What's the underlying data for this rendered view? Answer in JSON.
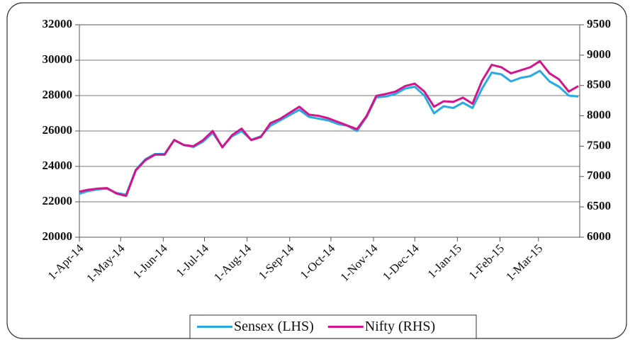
{
  "chart_data": {
    "type": "line",
    "x": [
      "2014-04-01",
      "2014-04-07",
      "2014-04-14",
      "2014-04-21",
      "2014-04-28",
      "2014-05-05",
      "2014-05-12",
      "2014-05-19",
      "2014-05-26",
      "2014-06-02",
      "2014-06-09",
      "2014-06-16",
      "2014-06-23",
      "2014-06-30",
      "2014-07-07",
      "2014-07-14",
      "2014-07-21",
      "2014-07-28",
      "2014-08-04",
      "2014-08-11",
      "2014-08-18",
      "2014-08-25",
      "2014-09-01",
      "2014-09-08",
      "2014-09-15",
      "2014-09-22",
      "2014-09-29",
      "2014-10-06",
      "2014-10-13",
      "2014-10-20",
      "2014-10-27",
      "2014-11-03",
      "2014-11-10",
      "2014-11-17",
      "2014-11-24",
      "2014-12-01",
      "2014-12-08",
      "2014-12-15",
      "2014-12-22",
      "2014-12-29",
      "2015-01-05",
      "2015-01-12",
      "2015-01-19",
      "2015-01-26",
      "2015-02-02",
      "2015-02-09",
      "2015-02-16",
      "2015-02-23",
      "2015-03-02",
      "2015-03-09",
      "2015-03-16",
      "2015-03-23",
      "2015-03-30"
    ],
    "series": [
      {
        "name": "Sensex (LHS)",
        "color": "#29abe2",
        "values": [
          22450,
          22600,
          22700,
          22750,
          22500,
          22400,
          23800,
          24400,
          24700,
          24700,
          25500,
          25200,
          25100,
          25400,
          25900,
          25100,
          25700,
          26000,
          25500,
          25700,
          26300,
          26600,
          26900,
          27200,
          26800,
          26700,
          26600,
          26400,
          26300,
          26000,
          26800,
          27900,
          27950,
          28100,
          28400,
          28500,
          28000,
          27000,
          27400,
          27300,
          27600,
          27300,
          28400,
          29300,
          29200,
          28800,
          29000,
          29100,
          29400,
          28800,
          28500,
          28000,
          27950
        ]
      },
      {
        "name": "Nifty (RHS)",
        "color": "#d4148c",
        "axis": "y2",
        "values": [
          6750,
          6780,
          6800,
          6810,
          6720,
          6680,
          7100,
          7270,
          7360,
          7360,
          7600,
          7520,
          7500,
          7600,
          7750,
          7480,
          7680,
          7790,
          7600,
          7650,
          7880,
          7950,
          8050,
          8150,
          8020,
          8000,
          7960,
          7900,
          7840,
          7780,
          8000,
          8330,
          8360,
          8400,
          8490,
          8530,
          8400,
          8150,
          8240,
          8230,
          8300,
          8200,
          8580,
          8840,
          8800,
          8700,
          8750,
          8800,
          8900,
          8700,
          8600,
          8400,
          8490
        ]
      }
    ],
    "xlim": [
      "2014-04-01",
      "2015-03-31"
    ],
    "xticks": [
      {
        "value": "2014-04-01",
        "label": "1-Apr-14"
      },
      {
        "value": "2014-05-01",
        "label": "1-May-14"
      },
      {
        "value": "2014-06-01",
        "label": "1-Jun-14"
      },
      {
        "value": "2014-07-01",
        "label": "1-Jul-14"
      },
      {
        "value": "2014-08-01",
        "label": "1-Aug-14"
      },
      {
        "value": "2014-09-01",
        "label": "1-Sep-14"
      },
      {
        "value": "2014-10-01",
        "label": "1-Oct-14"
      },
      {
        "value": "2014-11-01",
        "label": "1-Nov-14"
      },
      {
        "value": "2014-12-01",
        "label": "1-Dec-14"
      },
      {
        "value": "2015-01-01",
        "label": "1-Jan-15"
      },
      {
        "value": "2015-02-01",
        "label": "1-Feb-15"
      },
      {
        "value": "2015-03-01",
        "label": "1-Mar-15"
      }
    ],
    "ylim": [
      20000,
      32000
    ],
    "yticks": [
      20000,
      22000,
      24000,
      26000,
      28000,
      30000,
      32000
    ],
    "y2lim": [
      6000,
      9500
    ],
    "y2ticks": [
      6000,
      6500,
      7000,
      7500,
      8000,
      8500,
      9000,
      9500
    ],
    "grid": true,
    "legend": "bottom"
  }
}
